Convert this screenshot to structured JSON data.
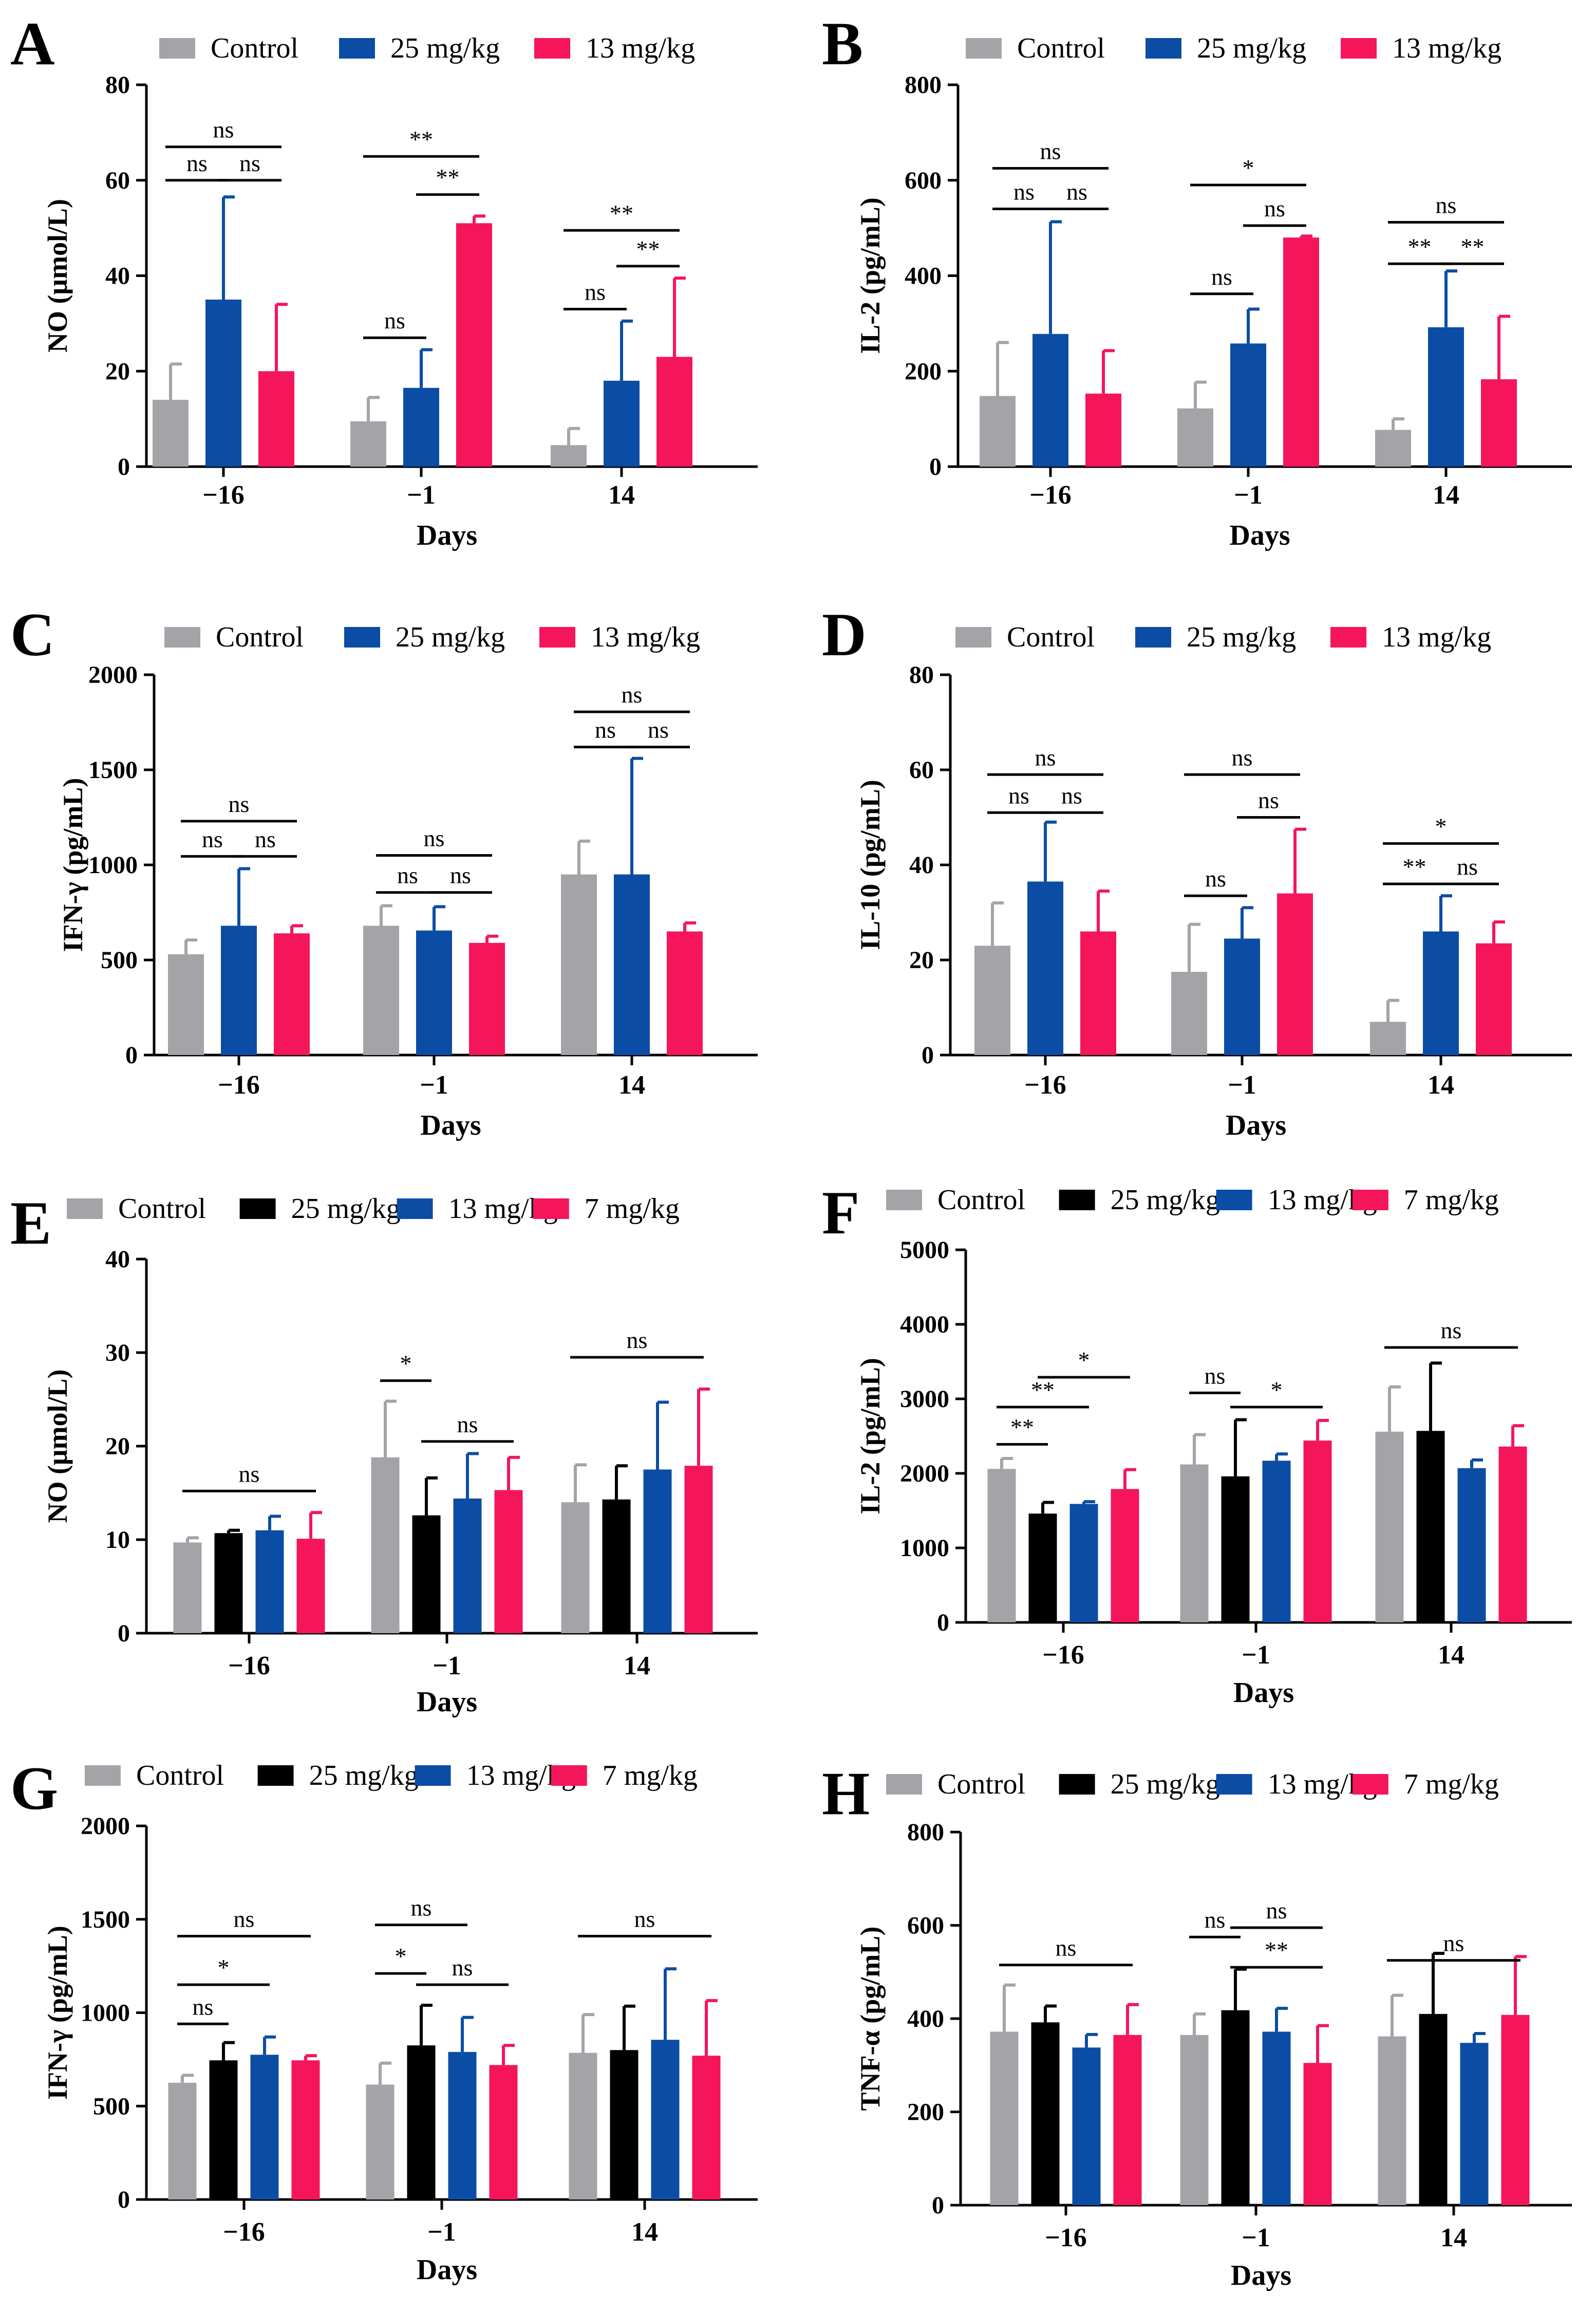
{
  "figure": {
    "x_axis_label": "Days",
    "categories": [
      "−16",
      "−1",
      "14"
    ],
    "colors": {
      "Control": "#a4a4a8",
      "25 mg/kg": "#0b4da5",
      "13 mg/kg": "#f5155b",
      "7 mg/kg": "#f5155b",
      "black": "#000000"
    }
  },
  "chart_data": [
    {
      "panel": "A",
      "type": "bar",
      "ylabel": "NO (μmol/L)",
      "xlabel": "Days",
      "categories": [
        "−16",
        "−1",
        "14"
      ],
      "ylim": [
        0,
        80
      ],
      "yticks": [
        0,
        20,
        40,
        60,
        80
      ],
      "legend": [
        "Control",
        "25 mg/kg",
        "13 mg/kg"
      ],
      "series": [
        {
          "name": "Control",
          "color": "#a4a4a8",
          "values": [
            14,
            9.5,
            4.5
          ],
          "errors": [
            7.5,
            5,
            3.5
          ]
        },
        {
          "name": "25 mg/kg",
          "color": "#0b4da5",
          "values": [
            35,
            16.5,
            18
          ],
          "errors": [
            21.5,
            8,
            12.5
          ]
        },
        {
          "name": "13 mg/kg",
          "color": "#f5155b",
          "values": [
            20,
            51,
            23
          ],
          "errors": [
            14,
            1.5,
            16.5
          ]
        }
      ],
      "annotations": [
        {
          "cat": 0,
          "from": 0,
          "to": 2,
          "y": 67,
          "text": "ns"
        },
        {
          "cat": 0,
          "from": 0,
          "to": 1,
          "y": 60,
          "text": "ns"
        },
        {
          "cat": 0,
          "from": 1,
          "to": 2,
          "y": 60,
          "text": "ns"
        },
        {
          "cat": 1,
          "from": 0,
          "to": 2,
          "y": 65,
          "text": "**"
        },
        {
          "cat": 1,
          "from": 1,
          "to": 2,
          "y": 57,
          "text": "**"
        },
        {
          "cat": 1,
          "from": 0,
          "to": 1,
          "y": 27,
          "text": "ns"
        },
        {
          "cat": 2,
          "from": 0,
          "to": 2,
          "y": 49.5,
          "text": "**"
        },
        {
          "cat": 2,
          "from": 1,
          "to": 2,
          "y": 42,
          "text": "**"
        },
        {
          "cat": 2,
          "from": 0,
          "to": 1,
          "y": 33,
          "text": "ns"
        }
      ]
    },
    {
      "panel": "B",
      "type": "bar",
      "ylabel": "IL-2 (pg/mL)",
      "xlabel": "Days",
      "categories": [
        "−16",
        "−1",
        "14"
      ],
      "ylim": [
        0,
        800
      ],
      "yticks": [
        0,
        200,
        400,
        600,
        800
      ],
      "legend": [
        "Control",
        "25 mg/kg",
        "13 mg/kg"
      ],
      "series": [
        {
          "name": "Control",
          "color": "#a4a4a8",
          "values": [
            148,
            122,
            77
          ],
          "errors": [
            112,
            55,
            23
          ]
        },
        {
          "name": "25 mg/kg",
          "color": "#0b4da5",
          "values": [
            278,
            258,
            292
          ],
          "errors": [
            235,
            72,
            118
          ]
        },
        {
          "name": "13 mg/kg",
          "color": "#f5155b",
          "values": [
            153,
            480,
            183
          ],
          "errors": [
            90,
            3,
            132
          ]
        }
      ],
      "annotations": [
        {
          "cat": 0,
          "from": 0,
          "to": 2,
          "y": 625,
          "text": "ns"
        },
        {
          "cat": 0,
          "from": 0,
          "to": 1,
          "y": 540,
          "text": "ns"
        },
        {
          "cat": 0,
          "from": 1,
          "to": 2,
          "y": 540,
          "text": "ns"
        },
        {
          "cat": 1,
          "from": 0,
          "to": 2,
          "y": 590,
          "text": "*"
        },
        {
          "cat": 1,
          "from": 1,
          "to": 2,
          "y": 505,
          "text": "ns"
        },
        {
          "cat": 1,
          "from": 0,
          "to": 1,
          "y": 362,
          "text": "ns"
        },
        {
          "cat": 2,
          "from": 0,
          "to": 2,
          "y": 512,
          "text": "ns"
        },
        {
          "cat": 2,
          "from": 0,
          "to": 1,
          "y": 425,
          "text": "**"
        },
        {
          "cat": 2,
          "from": 1,
          "to": 2,
          "y": 425,
          "text": "**"
        }
      ]
    },
    {
      "panel": "C",
      "type": "bar",
      "ylabel": "IFN-γ (pg/mL)",
      "xlabel": "Days",
      "categories": [
        "−16",
        "−1",
        "14"
      ],
      "ylim": [
        0,
        2000
      ],
      "yticks": [
        0,
        500,
        1000,
        1500,
        2000
      ],
      "legend": [
        "Control",
        "25 mg/kg",
        "13 mg/kg"
      ],
      "series": [
        {
          "name": "Control",
          "color": "#a4a4a8",
          "values": [
            530,
            680,
            950
          ],
          "errors": [
            75,
            105,
            175
          ]
        },
        {
          "name": "25 mg/kg",
          "color": "#0b4da5",
          "values": [
            680,
            655,
            950
          ],
          "errors": [
            300,
            125,
            610
          ]
        },
        {
          "name": "13 mg/kg",
          "color": "#f5155b",
          "values": [
            640,
            590,
            650
          ],
          "errors": [
            40,
            35,
            45
          ]
        }
      ],
      "annotations": [
        {
          "cat": 0,
          "from": 0,
          "to": 2,
          "y": 1230,
          "text": "ns"
        },
        {
          "cat": 0,
          "from": 0,
          "to": 1,
          "y": 1045,
          "text": "ns"
        },
        {
          "cat": 0,
          "from": 1,
          "to": 2,
          "y": 1045,
          "text": "ns"
        },
        {
          "cat": 1,
          "from": 0,
          "to": 2,
          "y": 1050,
          "text": "ns"
        },
        {
          "cat": 1,
          "from": 0,
          "to": 1,
          "y": 855,
          "text": "ns"
        },
        {
          "cat": 1,
          "from": 1,
          "to": 2,
          "y": 855,
          "text": "ns"
        },
        {
          "cat": 2,
          "from": 0,
          "to": 2,
          "y": 1805,
          "text": "ns"
        },
        {
          "cat": 2,
          "from": 0,
          "to": 1,
          "y": 1620,
          "text": "ns"
        },
        {
          "cat": 2,
          "from": 1,
          "to": 2,
          "y": 1620,
          "text": "ns"
        }
      ]
    },
    {
      "panel": "D",
      "type": "bar",
      "ylabel": "IL-10 (pg/mL)",
      "xlabel": "Days",
      "categories": [
        "−16",
        "−1",
        "14"
      ],
      "ylim": [
        0,
        80
      ],
      "yticks": [
        0,
        20,
        40,
        60,
        80
      ],
      "legend": [
        "Control",
        "25 mg/kg",
        "13 mg/kg"
      ],
      "series": [
        {
          "name": "Control",
          "color": "#a4a4a8",
          "values": [
            23,
            17.5,
            7
          ],
          "errors": [
            9,
            10,
            4.5
          ]
        },
        {
          "name": "25 mg/kg",
          "color": "#0b4da5",
          "values": [
            36.5,
            24.5,
            26
          ],
          "errors": [
            12.5,
            6.5,
            7.5
          ]
        },
        {
          "name": "13 mg/kg",
          "color": "#f5155b",
          "values": [
            26,
            34,
            23.5
          ],
          "errors": [
            8.5,
            13.5,
            4.5
          ]
        }
      ],
      "annotations": [
        {
          "cat": 0,
          "from": 0,
          "to": 2,
          "y": 59,
          "text": "ns"
        },
        {
          "cat": 0,
          "from": 0,
          "to": 1,
          "y": 51,
          "text": "ns"
        },
        {
          "cat": 0,
          "from": 1,
          "to": 2,
          "y": 51,
          "text": "ns"
        },
        {
          "cat": 1,
          "from": 0,
          "to": 2,
          "y": 59,
          "text": "ns"
        },
        {
          "cat": 1,
          "from": 1,
          "to": 2,
          "y": 50,
          "text": "ns"
        },
        {
          "cat": 1,
          "from": 0,
          "to": 1,
          "y": 33.5,
          "text": "ns"
        },
        {
          "cat": 2,
          "from": 0,
          "to": 2,
          "y": 44.5,
          "text": "*"
        },
        {
          "cat": 2,
          "from": 0,
          "to": 1,
          "y": 36,
          "text": "**"
        },
        {
          "cat": 2,
          "from": 1,
          "to": 2,
          "y": 36,
          "text": "ns"
        }
      ]
    },
    {
      "panel": "E",
      "type": "bar",
      "ylabel": "NO (μmol/L)",
      "xlabel": "Days",
      "categories": [
        "−16",
        "−1",
        "14"
      ],
      "ylim": [
        0,
        40
      ],
      "yticks": [
        0,
        10,
        20,
        30,
        40
      ],
      "legend": [
        "Control",
        "25 mg/kg",
        "13 mg/kg",
        "7 mg/kg"
      ],
      "series": [
        {
          "name": "Control",
          "color": "#a4a4a8",
          "values": [
            9.7,
            18.8,
            14
          ],
          "errors": [
            0.5,
            6,
            4
          ]
        },
        {
          "name": "25 mg/kg",
          "color": "#000000",
          "values": [
            10.7,
            12.6,
            14.3
          ],
          "errors": [
            0.3,
            4,
            3.6
          ]
        },
        {
          "name": "13 mg/kg",
          "color": "#0b4da5",
          "values": [
            11,
            14.4,
            17.5
          ],
          "errors": [
            1.5,
            4.8,
            7.2
          ]
        },
        {
          "name": "7 mg/kg",
          "color": "#f5155b",
          "values": [
            10.1,
            15.3,
            17.9
          ],
          "errors": [
            2.8,
            3.5,
            8.2
          ]
        }
      ],
      "annotations": [
        {
          "cat": 0,
          "from": 0,
          "to": 3,
          "y": 15.2,
          "text": "ns"
        },
        {
          "cat": 1,
          "from": 0,
          "to": 1,
          "y": 27,
          "text": "*"
        },
        {
          "cat": 1,
          "from": 1,
          "to": 3,
          "y": 20.5,
          "text": "ns"
        },
        {
          "cat": 2,
          "from": 0,
          "to": 3,
          "y": 29.5,
          "text": "ns"
        }
      ]
    },
    {
      "panel": "F",
      "type": "bar",
      "ylabel": "IL-2 (pg/mL)",
      "xlabel": "Days",
      "categories": [
        "−16",
        "−1",
        "14"
      ],
      "ylim": [
        0,
        5000
      ],
      "yticks": [
        0,
        1000,
        2000,
        3000,
        4000,
        5000
      ],
      "legend": [
        "Control",
        "25 mg/kg",
        "13 mg/kg",
        "7 mg/kg"
      ],
      "series": [
        {
          "name": "Control",
          "color": "#a4a4a8",
          "values": [
            2060,
            2120,
            2560
          ],
          "errors": [
            140,
            400,
            600
          ]
        },
        {
          "name": "25 mg/kg",
          "color": "#000000",
          "values": [
            1460,
            1960,
            2570
          ],
          "errors": [
            150,
            760,
            910
          ]
        },
        {
          "name": "13 mg/kg",
          "color": "#0b4da5",
          "values": [
            1590,
            2170,
            2070
          ],
          "errors": [
            30,
            90,
            110
          ]
        },
        {
          "name": "7 mg/kg",
          "color": "#f5155b",
          "values": [
            1790,
            2440,
            2360
          ],
          "errors": [
            260,
            270,
            280
          ]
        }
      ],
      "annotations": [
        {
          "cat": 0,
          "from": 0,
          "to": 1,
          "y": 2390,
          "text": "**"
        },
        {
          "cat": 0,
          "from": 0,
          "to": 2,
          "y": 2890,
          "text": "**"
        },
        {
          "cat": 0,
          "from": 1,
          "to": 3,
          "y": 3290,
          "text": "*"
        },
        {
          "cat": 1,
          "from": 0,
          "to": 1,
          "y": 3080,
          "text": "ns"
        },
        {
          "cat": 1,
          "from": 1,
          "to": 3,
          "y": 2890,
          "text": "*"
        },
        {
          "cat": 2,
          "from": 0,
          "to": 3,
          "y": 3690,
          "text": "ns"
        }
      ]
    },
    {
      "panel": "G",
      "type": "bar",
      "ylabel": "IFN-γ (pg/mL)",
      "xlabel": "Days",
      "categories": [
        "−16",
        "−1",
        "14"
      ],
      "ylim": [
        0,
        2000
      ],
      "yticks": [
        0,
        500,
        1000,
        1500,
        2000
      ],
      "legend": [
        "Control",
        "25 mg/kg",
        "13 mg/kg",
        "7 mg/kg"
      ],
      "series": [
        {
          "name": "Control",
          "color": "#a4a4a8",
          "values": [
            625,
            615,
            785
          ],
          "errors": [
            40,
            115,
            205
          ]
        },
        {
          "name": "25 mg/kg",
          "color": "#000000",
          "values": [
            745,
            825,
            800
          ],
          "errors": [
            95,
            215,
            235
          ]
        },
        {
          "name": "13 mg/kg",
          "color": "#0b4da5",
          "values": [
            775,
            790,
            855
          ],
          "errors": [
            95,
            185,
            380
          ]
        },
        {
          "name": "7 mg/kg",
          "color": "#f5155b",
          "values": [
            745,
            720,
            770
          ],
          "errors": [
            25,
            105,
            295
          ]
        }
      ],
      "annotations": [
        {
          "cat": 0,
          "from": 0,
          "to": 3,
          "y": 1410,
          "text": "ns"
        },
        {
          "cat": 0,
          "from": 0,
          "to": 2,
          "y": 1150,
          "text": "*"
        },
        {
          "cat": 0,
          "from": 0,
          "to": 1,
          "y": 940,
          "text": "ns"
        },
        {
          "cat": 1,
          "from": 0,
          "to": 2,
          "y": 1470,
          "text": "ns"
        },
        {
          "cat": 1,
          "from": 0,
          "to": 1,
          "y": 1210,
          "text": "*"
        },
        {
          "cat": 1,
          "from": 1,
          "to": 3,
          "y": 1150,
          "text": "ns"
        },
        {
          "cat": 2,
          "from": 0,
          "to": 3,
          "y": 1410,
          "text": "ns"
        }
      ]
    },
    {
      "panel": "H",
      "type": "bar",
      "ylabel": "TNF-α (pg/mL)",
      "xlabel": "Days",
      "categories": [
        "−16",
        "−1",
        "14"
      ],
      "ylim": [
        0,
        800
      ],
      "yticks": [
        0,
        200,
        400,
        600,
        800
      ],
      "legend": [
        "Control",
        "25 mg/kg",
        "13 mg/kg",
        "7 mg/kg"
      ],
      "series": [
        {
          "name": "Control",
          "color": "#a4a4a8",
          "values": [
            372,
            365,
            362
          ],
          "errors": [
            100,
            45,
            88
          ]
        },
        {
          "name": "25 mg/kg",
          "color": "#000000",
          "values": [
            392,
            418,
            410
          ],
          "errors": [
            35,
            88,
            130
          ]
        },
        {
          "name": "13 mg/kg",
          "color": "#0b4da5",
          "values": [
            338,
            372,
            348
          ],
          "errors": [
            28,
            50,
            20
          ]
        },
        {
          "name": "7 mg/kg",
          "color": "#f5155b",
          "values": [
            365,
            305,
            408
          ],
          "errors": [
            65,
            80,
            125
          ]
        }
      ],
      "annotations": [
        {
          "cat": 0,
          "from": 0,
          "to": 3,
          "y": 515,
          "text": "ns"
        },
        {
          "cat": 1,
          "from": 0,
          "to": 1,
          "y": 575,
          "text": "ns"
        },
        {
          "cat": 1,
          "from": 1,
          "to": 3,
          "y": 595,
          "text": "ns"
        },
        {
          "cat": 1,
          "from": 1,
          "to": 3,
          "y": 510,
          "text": "**"
        },
        {
          "cat": 2,
          "from": 0,
          "to": 3,
          "y": 525,
          "text": "ns"
        }
      ]
    }
  ]
}
